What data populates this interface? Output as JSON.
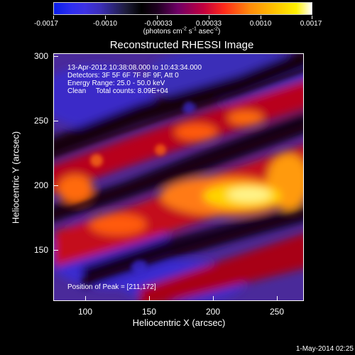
{
  "colorbar": {
    "tick_labels": [
      "-0.0017",
      "-0.0010",
      "-0.00033",
      "0.00033",
      "0.0010",
      "0.0017"
    ],
    "units_prefix": "(photons cm",
    "units_sup1": "-2",
    "units_mid1": " s",
    "units_sup2": "-1",
    "units_mid2": " asec",
    "units_sup3": "-2",
    "units_suffix": ")"
  },
  "title": "Reconstructed RHESSI Image",
  "info": {
    "line1": "13-Apr-2012 10:38:08.000 to 10:43:34.000",
    "line2": "Detectors: 3F 5F 6F 7F 8F 9F, Att 0",
    "line3": "Energy Range: 25.0 - 50.0 keV",
    "line4": "Clean     Total counts: 8.09E+04"
  },
  "peak_label": "Position of Peak = [211,172]",
  "xlabel": "Heliocentric X (arcsec)",
  "ylabel": "Heliocentric Y (arcsec)",
  "xticks": [
    "100",
    "150",
    "200",
    "250"
  ],
  "yticks": [
    "300",
    "250",
    "200",
    "150"
  ],
  "datestamp": "1-May-2014 02:25",
  "colors": {
    "background": "#000000",
    "blue_low": "#2f2ef0",
    "purple": "#6e0066",
    "red": "#d0101a",
    "orange": "#ff8b0b",
    "yellow": "#fff000"
  }
}
